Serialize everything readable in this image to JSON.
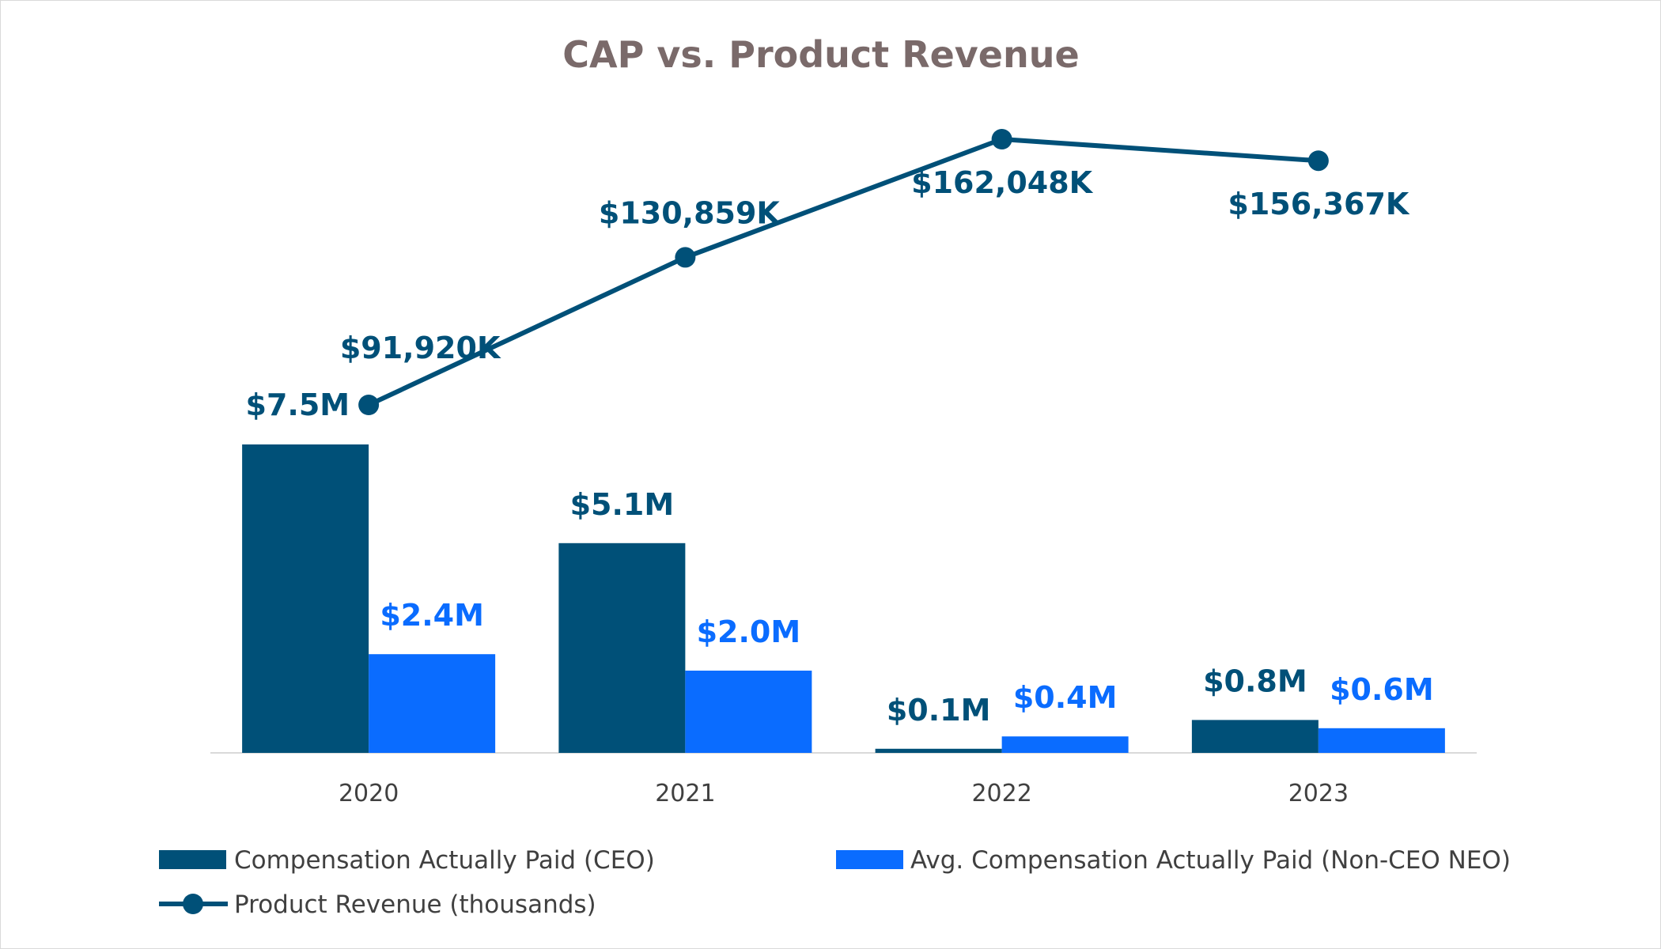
{
  "chart_data": {
    "type": "bar",
    "title": "CAP vs. Product Revenue",
    "categories": [
      "2020",
      "2021",
      "2022",
      "2023"
    ],
    "xlabel": "",
    "ylabel": "",
    "grid": false,
    "legend_position": "bottom",
    "series": [
      {
        "name": "Compensation Actually Paid (CEO)",
        "kind": "bar",
        "axis": "left",
        "color": "#005078",
        "values": [
          7.5,
          5.1,
          0.1,
          0.8
        ],
        "labels": [
          "$7.5M",
          "$5.1M",
          "$0.1M",
          "$0.8M"
        ]
      },
      {
        "name": "Avg. Compensation Actually Paid (Non-CEO NEO)",
        "kind": "bar",
        "axis": "left",
        "color": "#0A6CFF",
        "values": [
          2.4,
          2.0,
          0.4,
          0.6
        ],
        "labels": [
          "$2.4M",
          "$2.0M",
          "$0.4M",
          "$0.6M"
        ]
      },
      {
        "name": "Product Revenue (thousands)",
        "kind": "line",
        "axis": "right",
        "color": "#005078",
        "values": [
          91920,
          130859,
          162048,
          156367
        ],
        "labels": [
          "$91,920K",
          "$130,859K",
          "$162,048K",
          "$156,367K"
        ]
      }
    ],
    "y_left_range": [
      0,
      8
    ],
    "y_right_range": [
      0,
      175000
    ]
  },
  "colors": {
    "title": "#7A6A6A",
    "axis_line": "#d9d9d9",
    "tick_text": "#404040"
  }
}
